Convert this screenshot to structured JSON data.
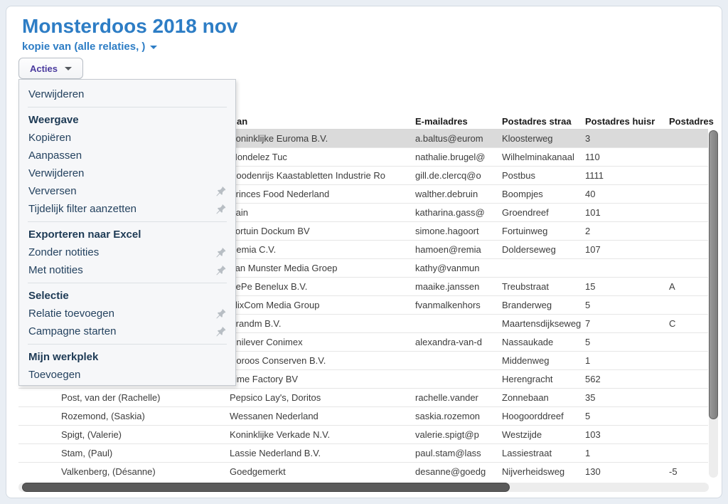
{
  "page": {
    "title": "Monsterdoos 2018 nov",
    "subtitle": "kopie van (alle relaties, )"
  },
  "actions_button": {
    "label": "Acties"
  },
  "menu": {
    "items": [
      {
        "type": "item",
        "label": "Verwijderen",
        "pin": false
      },
      {
        "type": "header",
        "label": "Weergave"
      },
      {
        "type": "item",
        "label": "Kopiëren",
        "pin": false
      },
      {
        "type": "item",
        "label": "Aanpassen",
        "pin": false
      },
      {
        "type": "item",
        "label": "Verwijderen",
        "pin": false
      },
      {
        "type": "item",
        "label": "Verversen",
        "pin": true
      },
      {
        "type": "item",
        "label": "Tijdelijk filter aanzetten",
        "pin": true
      },
      {
        "type": "header",
        "label": "Exporteren naar Excel"
      },
      {
        "type": "item",
        "label": "Zonder notities",
        "pin": true
      },
      {
        "type": "item",
        "label": "Met notities",
        "pin": true
      },
      {
        "type": "header",
        "label": "Selectie"
      },
      {
        "type": "item",
        "label": "Relatie toevoegen",
        "pin": true
      },
      {
        "type": "item",
        "label": "Campagne starten",
        "pin": true
      },
      {
        "type": "header",
        "label": "Mijn werkplek"
      },
      {
        "type": "item",
        "label": "Toevoegen",
        "pin": false
      }
    ]
  },
  "table": {
    "columns": [
      {
        "label": ""
      },
      {
        "label": "an"
      },
      {
        "label": "E-mailadres"
      },
      {
        "label": "Postadres straa"
      },
      {
        "label": "Postadres huisr"
      },
      {
        "label": "Postadres"
      }
    ],
    "selected_row_index": 0,
    "rows": [
      {
        "person": "",
        "company": "Koninklijke Euroma B.V.",
        "email": "a.baltus@eurom",
        "street": "Kloosterweg",
        "number": "3",
        "suffix": ""
      },
      {
        "person": "",
        "company": "Mondelez Tuc",
        "email": "nathalie.brugel@",
        "street": "Wilhelminakanaal",
        "number": "110",
        "suffix": ""
      },
      {
        "person": "",
        "company": "Roodenrijs Kaastabletten Industrie Ro",
        "email": "gill.de.clercq@o",
        "street": "Postbus",
        "number": "1111",
        "suffix": ""
      },
      {
        "person": "",
        "company": "Princes Food Nederland",
        "email": "walther.debruin",
        "street": "Boompjes",
        "number": "40",
        "suffix": ""
      },
      {
        "person": "",
        "company": "Bain",
        "email": "katharina.gass@",
        "street": "Groendreef",
        "number": "101",
        "suffix": ""
      },
      {
        "person": "",
        "company": "Fortuin Dockum BV",
        "email": "simone.hagoort",
        "street": "Fortuinweg",
        "number": "2",
        "suffix": ""
      },
      {
        "person": "",
        "company": "Remia C.V.",
        "email": "hamoen@remia",
        "street": "Dolderseweg",
        "number": "107",
        "suffix": ""
      },
      {
        "person": "",
        "company": "Van Munster Media Groep",
        "email": "kathy@vanmun",
        "street": "",
        "number": "",
        "suffix": ""
      },
      {
        "person": "",
        "company": "PePe Benelux B.V.",
        "email": "maaike.janssen",
        "street": "Treubstraat",
        "number": "15",
        "suffix": "A"
      },
      {
        "person": "",
        "company": "FlixCom Media Group",
        "email": "fvanmalkenhors",
        "street": "Branderweg",
        "number": "5",
        "suffix": ""
      },
      {
        "person": "",
        "company": "Brandm B.V.",
        "email": "",
        "street": "Maartensdijkseweg",
        "number": "7",
        "suffix": "C"
      },
      {
        "person": "",
        "company": "Unilever Conimex",
        "email": "alexandra-van-d",
        "street": "Nassaukade",
        "number": "5",
        "suffix": ""
      },
      {
        "person": "",
        "company": "Coroos Conserven B.V.",
        "email": "",
        "street": "Middenweg",
        "number": "1",
        "suffix": ""
      },
      {
        "person": "",
        "company": "Lime Factory BV",
        "email": "",
        "street": "Herengracht",
        "number": "562",
        "suffix": ""
      },
      {
        "person": "Post, van der (Rachelle)",
        "company": "Pepsico Lay's, Doritos",
        "email": "rachelle.vander",
        "street": "Zonnebaan",
        "number": "35",
        "suffix": ""
      },
      {
        "person": "Rozemond, (Saskia)",
        "company": "Wessanen Nederland",
        "email": "saskia.rozemon",
        "street": "Hoogoorddreef",
        "number": "5",
        "suffix": ""
      },
      {
        "person": "Spigt, (Valerie)",
        "company": "Koninklijke Verkade N.V.",
        "email": "valerie.spigt@p",
        "street": "Westzijde",
        "number": "103",
        "suffix": ""
      },
      {
        "person": "Stam, (Paul)",
        "company": "Lassie Nederland B.V.",
        "email": "paul.stam@lass",
        "street": "Lassiestraat",
        "number": "1",
        "suffix": ""
      },
      {
        "person": "Valkenberg, (Désanne)",
        "company": "Goedgemerkt",
        "email": "desanne@goedg",
        "street": "Nijverheidsweg",
        "number": "130",
        "suffix": "-5"
      }
    ]
  },
  "colors": {
    "title_blue": "#2d7dc5",
    "button_text_purple": "#4a3a9e",
    "menu_text": "#24425f",
    "selected_row_bg": "#dadada",
    "pin_gray": "#b8bec4"
  }
}
